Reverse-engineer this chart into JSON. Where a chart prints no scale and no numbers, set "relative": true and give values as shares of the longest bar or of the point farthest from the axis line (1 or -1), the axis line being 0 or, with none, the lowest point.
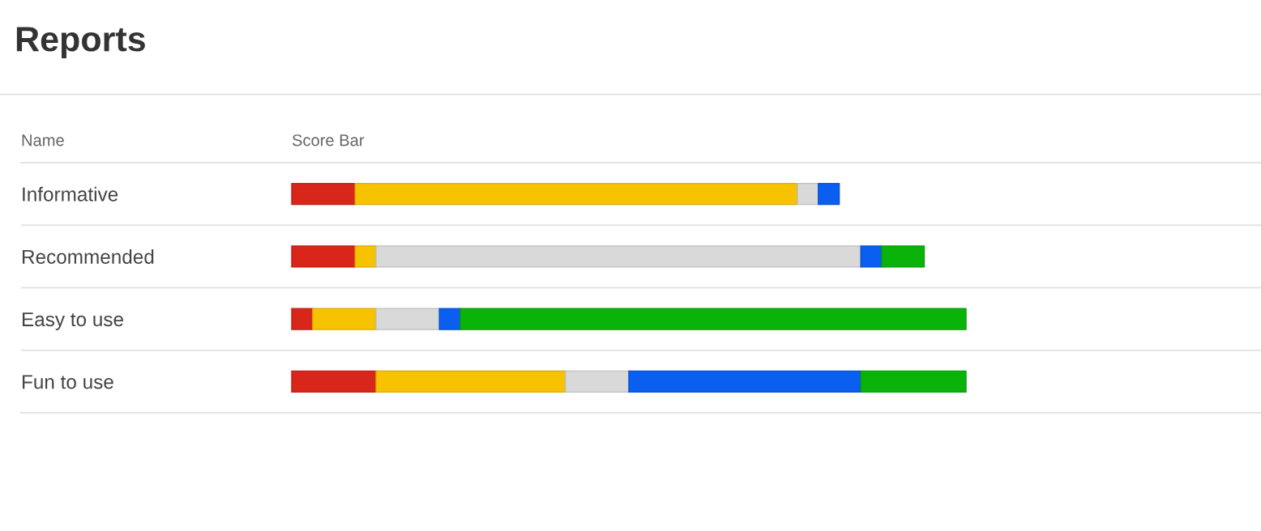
{
  "chart_data": {
    "type": "bar",
    "title": "Reports",
    "xlabel": "Score Bar",
    "ylabel": "Name",
    "categories": [
      "Informative",
      "Recommended",
      "Easy to use",
      "Fun to use"
    ],
    "orientation": "horizontal",
    "stacked": true,
    "relative": true,
    "series": [
      {
        "color": "#d8261a",
        "values": [
          0.094,
          0.094,
          0.031,
          0.125
        ]
      },
      {
        "color": "#f7c200",
        "values": [
          0.656,
          0.031,
          0.094,
          0.281
        ]
      },
      {
        "color": "#d9d9d9",
        "values": [
          0.031,
          0.719,
          0.094,
          0.094
        ]
      },
      {
        "color": "#0a5ef0",
        "values": [
          0.031,
          0.031,
          0.031,
          0.344
        ]
      },
      {
        "color": "#0ab30a",
        "values": [
          null,
          0.063,
          0.75,
          0.156
        ]
      }
    ]
  }
}
